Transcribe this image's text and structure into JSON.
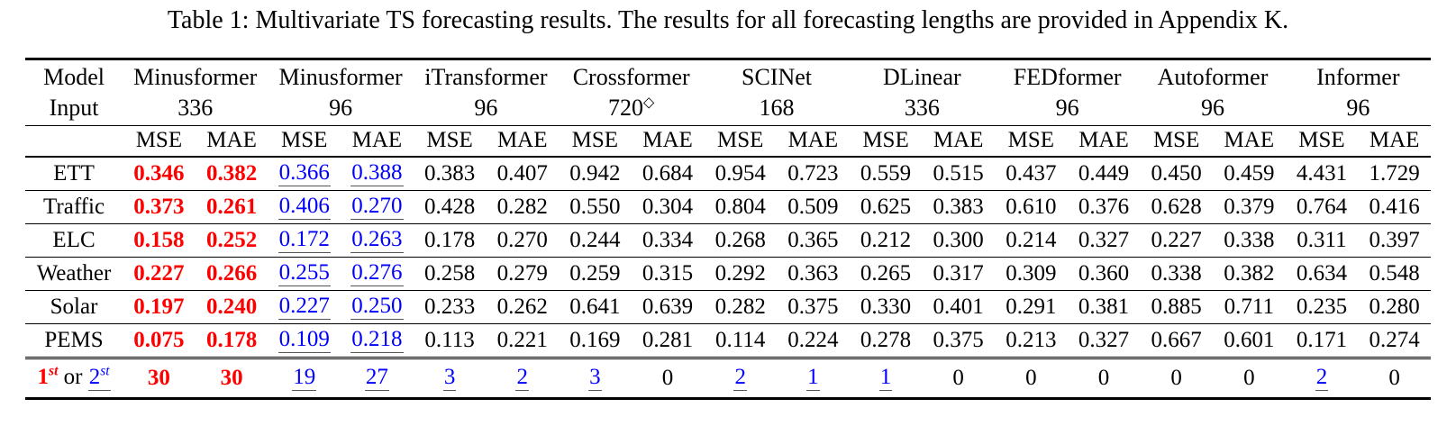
{
  "caption": "Table 1: Multivariate TS forecasting results. The results for all forecasting lengths are provided in Appendix K.",
  "colors": {
    "best_rank": "#ff0000",
    "second_rank": "#0000ff",
    "text": "#000000",
    "underline": "#555555",
    "rules": "#000000",
    "background": "#ffffff"
  },
  "table": {
    "corner": {
      "top": "Model",
      "bottom": "Input"
    },
    "metrics": [
      "MSE",
      "MAE"
    ],
    "models": [
      {
        "name": "Minusformer",
        "input": "336",
        "input_sup": ""
      },
      {
        "name": "Minusformer",
        "input": "96",
        "input_sup": ""
      },
      {
        "name": "iTransformer",
        "input": "96",
        "input_sup": ""
      },
      {
        "name": "Crossformer",
        "input": "720",
        "input_sup": "◇"
      },
      {
        "name": "SCINet",
        "input": "168",
        "input_sup": ""
      },
      {
        "name": "DLinear",
        "input": "336",
        "input_sup": ""
      },
      {
        "name": "FEDformer",
        "input": "96",
        "input_sup": ""
      },
      {
        "name": "Autoformer",
        "input": "96",
        "input_sup": ""
      },
      {
        "name": "Informer",
        "input": "96",
        "input_sup": ""
      }
    ],
    "column_styles": [
      "best",
      "best",
      "second",
      "second",
      "plain",
      "plain",
      "plain",
      "plain",
      "plain",
      "plain",
      "plain",
      "plain",
      "plain",
      "plain",
      "plain",
      "plain",
      "plain",
      "plain"
    ],
    "rows": [
      {
        "label": "ETT",
        "values": [
          "0.346",
          "0.382",
          "0.366",
          "0.388",
          "0.383",
          "0.407",
          "0.942",
          "0.684",
          "0.954",
          "0.723",
          "0.559",
          "0.515",
          "0.437",
          "0.449",
          "0.450",
          "0.459",
          "4.431",
          "1.729"
        ]
      },
      {
        "label": "Traffic",
        "values": [
          "0.373",
          "0.261",
          "0.406",
          "0.270",
          "0.428",
          "0.282",
          "0.550",
          "0.304",
          "0.804",
          "0.509",
          "0.625",
          "0.383",
          "0.610",
          "0.376",
          "0.628",
          "0.379",
          "0.764",
          "0.416"
        ]
      },
      {
        "label": "ELC",
        "values": [
          "0.158",
          "0.252",
          "0.172",
          "0.263",
          "0.178",
          "0.270",
          "0.244",
          "0.334",
          "0.268",
          "0.365",
          "0.212",
          "0.300",
          "0.214",
          "0.327",
          "0.227",
          "0.338",
          "0.311",
          "0.397"
        ]
      },
      {
        "label": "Weather",
        "values": [
          "0.227",
          "0.266",
          "0.255",
          "0.276",
          "0.258",
          "0.279",
          "0.259",
          "0.315",
          "0.292",
          "0.363",
          "0.265",
          "0.317",
          "0.309",
          "0.360",
          "0.338",
          "0.382",
          "0.634",
          "0.548"
        ]
      },
      {
        "label": "Solar",
        "values": [
          "0.197",
          "0.240",
          "0.227",
          "0.250",
          "0.233",
          "0.262",
          "0.641",
          "0.639",
          "0.282",
          "0.375",
          "0.330",
          "0.401",
          "0.291",
          "0.381",
          "0.885",
          "0.711",
          "0.235",
          "0.280"
        ]
      },
      {
        "label": "PEMS",
        "values": [
          "0.075",
          "0.178",
          "0.109",
          "0.218",
          "0.113",
          "0.221",
          "0.169",
          "0.281",
          "0.114",
          "0.224",
          "0.278",
          "0.375",
          "0.213",
          "0.327",
          "0.667",
          "0.601",
          "0.171",
          "0.274"
        ]
      }
    ],
    "summary": {
      "label": {
        "first_base": "1",
        "first_sup": "st",
        "connector": " or ",
        "second_base": "2",
        "second_sup": "st"
      },
      "values": [
        "30",
        "30",
        "19",
        "27",
        "3",
        "2",
        "3",
        "0",
        "2",
        "1",
        "1",
        "0",
        "0",
        "0",
        "0",
        "0",
        "2",
        "0"
      ],
      "styles": [
        "best",
        "best",
        "second",
        "second",
        "second",
        "second",
        "second",
        "plain",
        "second",
        "second",
        "second",
        "plain",
        "plain",
        "plain",
        "plain",
        "plain",
        "second",
        "plain"
      ]
    }
  }
}
